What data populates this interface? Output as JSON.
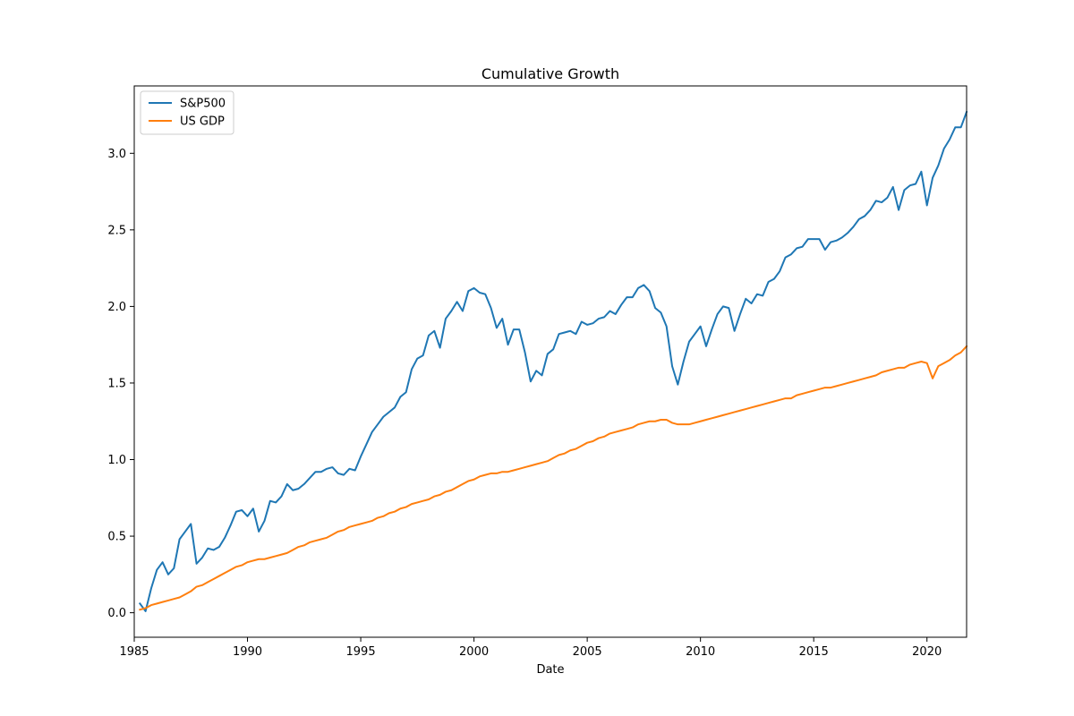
{
  "chart_data": {
    "type": "line",
    "title": "Cumulative Growth",
    "xlabel": "Date",
    "ylabel": "",
    "xlim": [
      1985,
      2021.75
    ],
    "ylim": [
      -0.16,
      3.44
    ],
    "xticks": [
      1985,
      1990,
      1995,
      2000,
      2005,
      2010,
      2015,
      2020
    ],
    "yticks": [
      0.0,
      0.5,
      1.0,
      1.5,
      2.0,
      2.5,
      3.0
    ],
    "ytick_labels": [
      "0.0",
      "0.5",
      "1.0",
      "1.5",
      "2.0",
      "2.5",
      "3.0"
    ],
    "grid": false,
    "legend": "top-left",
    "series": [
      {
        "name": "S&P500",
        "color": "#1f77b4",
        "points": [
          [
            1985.25,
            0.06
          ],
          [
            1985.5,
            0.01
          ],
          [
            1985.75,
            0.16
          ],
          [
            1986.0,
            0.28
          ],
          [
            1986.25,
            0.33
          ],
          [
            1986.5,
            0.25
          ],
          [
            1986.75,
            0.29
          ],
          [
            1987.0,
            0.48
          ],
          [
            1987.25,
            0.53
          ],
          [
            1987.5,
            0.58
          ],
          [
            1987.75,
            0.32
          ],
          [
            1988.0,
            0.36
          ],
          [
            1988.25,
            0.42
          ],
          [
            1988.5,
            0.41
          ],
          [
            1988.75,
            0.43
          ],
          [
            1989.0,
            0.49
          ],
          [
            1989.25,
            0.57
          ],
          [
            1989.5,
            0.66
          ],
          [
            1989.75,
            0.67
          ],
          [
            1990.0,
            0.63
          ],
          [
            1990.25,
            0.68
          ],
          [
            1990.5,
            0.53
          ],
          [
            1990.75,
            0.6
          ],
          [
            1991.0,
            0.73
          ],
          [
            1991.25,
            0.72
          ],
          [
            1991.5,
            0.76
          ],
          [
            1991.75,
            0.84
          ],
          [
            1992.0,
            0.8
          ],
          [
            1992.25,
            0.81
          ],
          [
            1992.5,
            0.84
          ],
          [
            1992.75,
            0.88
          ],
          [
            1993.0,
            0.92
          ],
          [
            1993.25,
            0.92
          ],
          [
            1993.5,
            0.94
          ],
          [
            1993.75,
            0.95
          ],
          [
            1994.0,
            0.91
          ],
          [
            1994.25,
            0.9
          ],
          [
            1994.5,
            0.94
          ],
          [
            1994.75,
            0.93
          ],
          [
            1995.0,
            1.02
          ],
          [
            1995.25,
            1.1
          ],
          [
            1995.5,
            1.18
          ],
          [
            1995.75,
            1.23
          ],
          [
            1996.0,
            1.28
          ],
          [
            1996.25,
            1.31
          ],
          [
            1996.5,
            1.34
          ],
          [
            1996.75,
            1.41
          ],
          [
            1997.0,
            1.44
          ],
          [
            1997.25,
            1.59
          ],
          [
            1997.5,
            1.66
          ],
          [
            1997.75,
            1.68
          ],
          [
            1998.0,
            1.81
          ],
          [
            1998.25,
            1.84
          ],
          [
            1998.5,
            1.73
          ],
          [
            1998.75,
            1.92
          ],
          [
            1999.0,
            1.97
          ],
          [
            1999.25,
            2.03
          ],
          [
            1999.5,
            1.97
          ],
          [
            1999.75,
            2.1
          ],
          [
            2000.0,
            2.12
          ],
          [
            2000.25,
            2.09
          ],
          [
            2000.5,
            2.08
          ],
          [
            2000.75,
            1.99
          ],
          [
            2001.0,
            1.86
          ],
          [
            2001.25,
            1.92
          ],
          [
            2001.5,
            1.75
          ],
          [
            2001.75,
            1.85
          ],
          [
            2002.0,
            1.85
          ],
          [
            2002.25,
            1.7
          ],
          [
            2002.5,
            1.51
          ],
          [
            2002.75,
            1.58
          ],
          [
            2003.0,
            1.55
          ],
          [
            2003.25,
            1.69
          ],
          [
            2003.5,
            1.72
          ],
          [
            2003.75,
            1.82
          ],
          [
            2004.0,
            1.83
          ],
          [
            2004.25,
            1.84
          ],
          [
            2004.5,
            1.82
          ],
          [
            2004.75,
            1.9
          ],
          [
            2005.0,
            1.88
          ],
          [
            2005.25,
            1.89
          ],
          [
            2005.5,
            1.92
          ],
          [
            2005.75,
            1.93
          ],
          [
            2006.0,
            1.97
          ],
          [
            2006.25,
            1.95
          ],
          [
            2006.5,
            2.01
          ],
          [
            2006.75,
            2.06
          ],
          [
            2007.0,
            2.06
          ],
          [
            2007.25,
            2.12
          ],
          [
            2007.5,
            2.14
          ],
          [
            2007.75,
            2.1
          ],
          [
            2008.0,
            1.99
          ],
          [
            2008.25,
            1.96
          ],
          [
            2008.5,
            1.87
          ],
          [
            2008.75,
            1.61
          ],
          [
            2009.0,
            1.49
          ],
          [
            2009.25,
            1.64
          ],
          [
            2009.5,
            1.77
          ],
          [
            2009.75,
            1.82
          ],
          [
            2010.0,
            1.87
          ],
          [
            2010.25,
            1.74
          ],
          [
            2010.5,
            1.85
          ],
          [
            2010.75,
            1.95
          ],
          [
            2011.0,
            2.0
          ],
          [
            2011.25,
            1.99
          ],
          [
            2011.5,
            1.84
          ],
          [
            2011.75,
            1.95
          ],
          [
            2012.0,
            2.05
          ],
          [
            2012.25,
            2.02
          ],
          [
            2012.5,
            2.08
          ],
          [
            2012.75,
            2.07
          ],
          [
            2013.0,
            2.16
          ],
          [
            2013.25,
            2.18
          ],
          [
            2013.5,
            2.23
          ],
          [
            2013.75,
            2.32
          ],
          [
            2014.0,
            2.34
          ],
          [
            2014.25,
            2.38
          ],
          [
            2014.5,
            2.39
          ],
          [
            2014.75,
            2.44
          ],
          [
            2015.0,
            2.44
          ],
          [
            2015.25,
            2.44
          ],
          [
            2015.5,
            2.37
          ],
          [
            2015.75,
            2.42
          ],
          [
            2016.0,
            2.43
          ],
          [
            2016.25,
            2.45
          ],
          [
            2016.5,
            2.48
          ],
          [
            2016.75,
            2.52
          ],
          [
            2017.0,
            2.57
          ],
          [
            2017.25,
            2.59
          ],
          [
            2017.5,
            2.63
          ],
          [
            2017.75,
            2.69
          ],
          [
            2018.0,
            2.68
          ],
          [
            2018.25,
            2.71
          ],
          [
            2018.5,
            2.78
          ],
          [
            2018.75,
            2.63
          ],
          [
            2019.0,
            2.76
          ],
          [
            2019.25,
            2.79
          ],
          [
            2019.5,
            2.8
          ],
          [
            2019.75,
            2.88
          ],
          [
            2020.0,
            2.66
          ],
          [
            2020.25,
            2.84
          ],
          [
            2020.5,
            2.92
          ],
          [
            2020.75,
            3.03
          ],
          [
            2021.0,
            3.09
          ],
          [
            2021.25,
            3.17
          ],
          [
            2021.5,
            3.17
          ],
          [
            2021.75,
            3.27
          ]
        ]
      },
      {
        "name": "US GDP",
        "color": "#ff7f0e",
        "points": [
          [
            1985.25,
            0.02
          ],
          [
            1985.5,
            0.03
          ],
          [
            1985.75,
            0.05
          ],
          [
            1986.0,
            0.06
          ],
          [
            1986.25,
            0.07
          ],
          [
            1986.5,
            0.08
          ],
          [
            1986.75,
            0.09
          ],
          [
            1987.0,
            0.1
          ],
          [
            1987.25,
            0.12
          ],
          [
            1987.5,
            0.14
          ],
          [
            1987.75,
            0.17
          ],
          [
            1988.0,
            0.18
          ],
          [
            1988.25,
            0.2
          ],
          [
            1988.5,
            0.22
          ],
          [
            1988.75,
            0.24
          ],
          [
            1989.0,
            0.26
          ],
          [
            1989.25,
            0.28
          ],
          [
            1989.5,
            0.3
          ],
          [
            1989.75,
            0.31
          ],
          [
            1990.0,
            0.33
          ],
          [
            1990.25,
            0.34
          ],
          [
            1990.5,
            0.35
          ],
          [
            1990.75,
            0.35
          ],
          [
            1991.0,
            0.36
          ],
          [
            1991.25,
            0.37
          ],
          [
            1991.5,
            0.38
          ],
          [
            1991.75,
            0.39
          ],
          [
            1992.0,
            0.41
          ],
          [
            1992.25,
            0.43
          ],
          [
            1992.5,
            0.44
          ],
          [
            1992.75,
            0.46
          ],
          [
            1993.0,
            0.47
          ],
          [
            1993.25,
            0.48
          ],
          [
            1993.5,
            0.49
          ],
          [
            1993.75,
            0.51
          ],
          [
            1994.0,
            0.53
          ],
          [
            1994.25,
            0.54
          ],
          [
            1994.5,
            0.56
          ],
          [
            1994.75,
            0.57
          ],
          [
            1995.0,
            0.58
          ],
          [
            1995.25,
            0.59
          ],
          [
            1995.5,
            0.6
          ],
          [
            1995.75,
            0.62
          ],
          [
            1996.0,
            0.63
          ],
          [
            1996.25,
            0.65
          ],
          [
            1996.5,
            0.66
          ],
          [
            1996.75,
            0.68
          ],
          [
            1997.0,
            0.69
          ],
          [
            1997.25,
            0.71
          ],
          [
            1997.5,
            0.72
          ],
          [
            1997.75,
            0.73
          ],
          [
            1998.0,
            0.74
          ],
          [
            1998.25,
            0.76
          ],
          [
            1998.5,
            0.77
          ],
          [
            1998.75,
            0.79
          ],
          [
            1999.0,
            0.8
          ],
          [
            1999.25,
            0.82
          ],
          [
            1999.5,
            0.84
          ],
          [
            1999.75,
            0.86
          ],
          [
            2000.0,
            0.87
          ],
          [
            2000.25,
            0.89
          ],
          [
            2000.5,
            0.9
          ],
          [
            2000.75,
            0.91
          ],
          [
            2001.0,
            0.91
          ],
          [
            2001.25,
            0.92
          ],
          [
            2001.5,
            0.92
          ],
          [
            2001.75,
            0.93
          ],
          [
            2002.0,
            0.94
          ],
          [
            2002.25,
            0.95
          ],
          [
            2002.5,
            0.96
          ],
          [
            2002.75,
            0.97
          ],
          [
            2003.0,
            0.98
          ],
          [
            2003.25,
            0.99
          ],
          [
            2003.5,
            1.01
          ],
          [
            2003.75,
            1.03
          ],
          [
            2004.0,
            1.04
          ],
          [
            2004.25,
            1.06
          ],
          [
            2004.5,
            1.07
          ],
          [
            2004.75,
            1.09
          ],
          [
            2005.0,
            1.11
          ],
          [
            2005.25,
            1.12
          ],
          [
            2005.5,
            1.14
          ],
          [
            2005.75,
            1.15
          ],
          [
            2006.0,
            1.17
          ],
          [
            2006.25,
            1.18
          ],
          [
            2006.5,
            1.19
          ],
          [
            2006.75,
            1.2
          ],
          [
            2007.0,
            1.21
          ],
          [
            2007.25,
            1.23
          ],
          [
            2007.5,
            1.24
          ],
          [
            2007.75,
            1.25
          ],
          [
            2008.0,
            1.25
          ],
          [
            2008.25,
            1.26
          ],
          [
            2008.5,
            1.26
          ],
          [
            2008.75,
            1.24
          ],
          [
            2009.0,
            1.23
          ],
          [
            2009.25,
            1.23
          ],
          [
            2009.5,
            1.23
          ],
          [
            2009.75,
            1.24
          ],
          [
            2010.0,
            1.25
          ],
          [
            2010.25,
            1.26
          ],
          [
            2010.5,
            1.27
          ],
          [
            2010.75,
            1.28
          ],
          [
            2011.0,
            1.29
          ],
          [
            2011.25,
            1.3
          ],
          [
            2011.5,
            1.31
          ],
          [
            2011.75,
            1.32
          ],
          [
            2012.0,
            1.33
          ],
          [
            2012.25,
            1.34
          ],
          [
            2012.5,
            1.35
          ],
          [
            2012.75,
            1.36
          ],
          [
            2013.0,
            1.37
          ],
          [
            2013.25,
            1.38
          ],
          [
            2013.5,
            1.39
          ],
          [
            2013.75,
            1.4
          ],
          [
            2014.0,
            1.4
          ],
          [
            2014.25,
            1.42
          ],
          [
            2014.5,
            1.43
          ],
          [
            2014.75,
            1.44
          ],
          [
            2015.0,
            1.45
          ],
          [
            2015.25,
            1.46
          ],
          [
            2015.5,
            1.47
          ],
          [
            2015.75,
            1.47
          ],
          [
            2016.0,
            1.48
          ],
          [
            2016.25,
            1.49
          ],
          [
            2016.5,
            1.5
          ],
          [
            2016.75,
            1.51
          ],
          [
            2017.0,
            1.52
          ],
          [
            2017.25,
            1.53
          ],
          [
            2017.5,
            1.54
          ],
          [
            2017.75,
            1.55
          ],
          [
            2018.0,
            1.57
          ],
          [
            2018.25,
            1.58
          ],
          [
            2018.5,
            1.59
          ],
          [
            2018.75,
            1.6
          ],
          [
            2019.0,
            1.6
          ],
          [
            2019.25,
            1.62
          ],
          [
            2019.5,
            1.63
          ],
          [
            2019.75,
            1.64
          ],
          [
            2020.0,
            1.63
          ],
          [
            2020.25,
            1.53
          ],
          [
            2020.5,
            1.61
          ],
          [
            2020.75,
            1.63
          ],
          [
            2021.0,
            1.65
          ],
          [
            2021.25,
            1.68
          ],
          [
            2021.5,
            1.7
          ],
          [
            2021.75,
            1.74
          ]
        ]
      }
    ]
  }
}
